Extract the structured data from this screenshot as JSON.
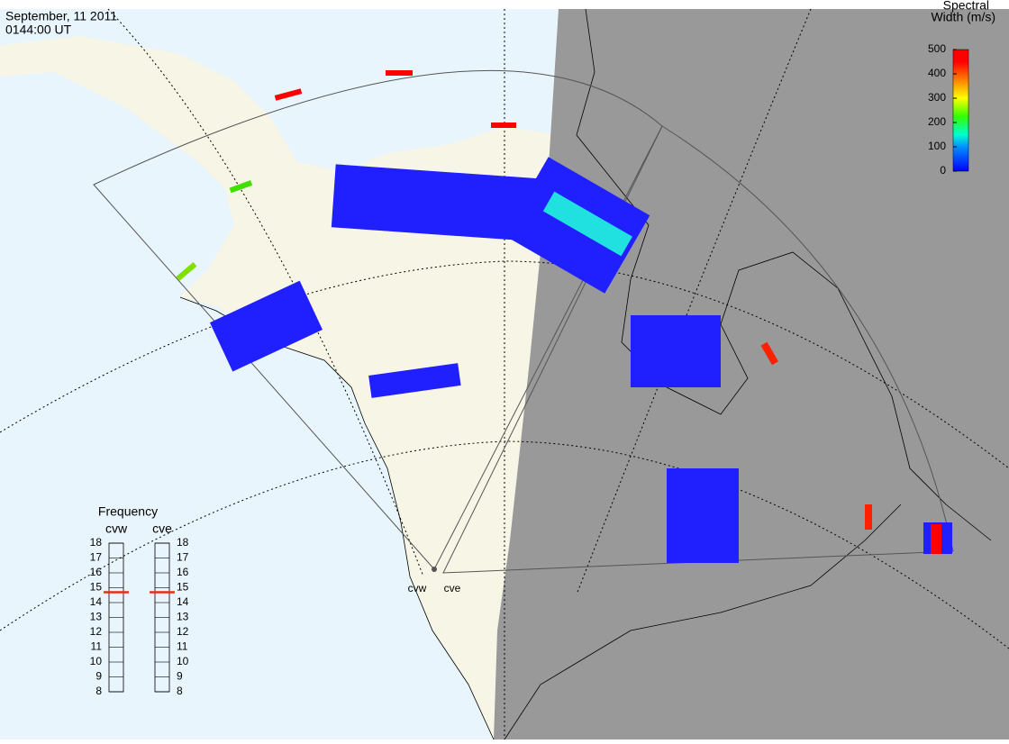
{
  "header": {
    "date": "September, 11 2011",
    "time": "0144:00 UT"
  },
  "colorbar": {
    "title_line1": "Spectral",
    "title_line2": "Width (m/s)",
    "range": [
      0,
      500
    ],
    "ticks": [
      0,
      100,
      200,
      300,
      400,
      500
    ]
  },
  "frequency": {
    "title": "Frequency",
    "range": [
      8,
      18
    ],
    "ticks": [
      8,
      9,
      10,
      11,
      12,
      13,
      14,
      15,
      16,
      17,
      18
    ],
    "radars": [
      {
        "name": "cvw",
        "value": 14.7
      },
      {
        "name": "cve",
        "value": 14.7
      }
    ]
  },
  "sites": [
    "cvw",
    "cve"
  ]
}
